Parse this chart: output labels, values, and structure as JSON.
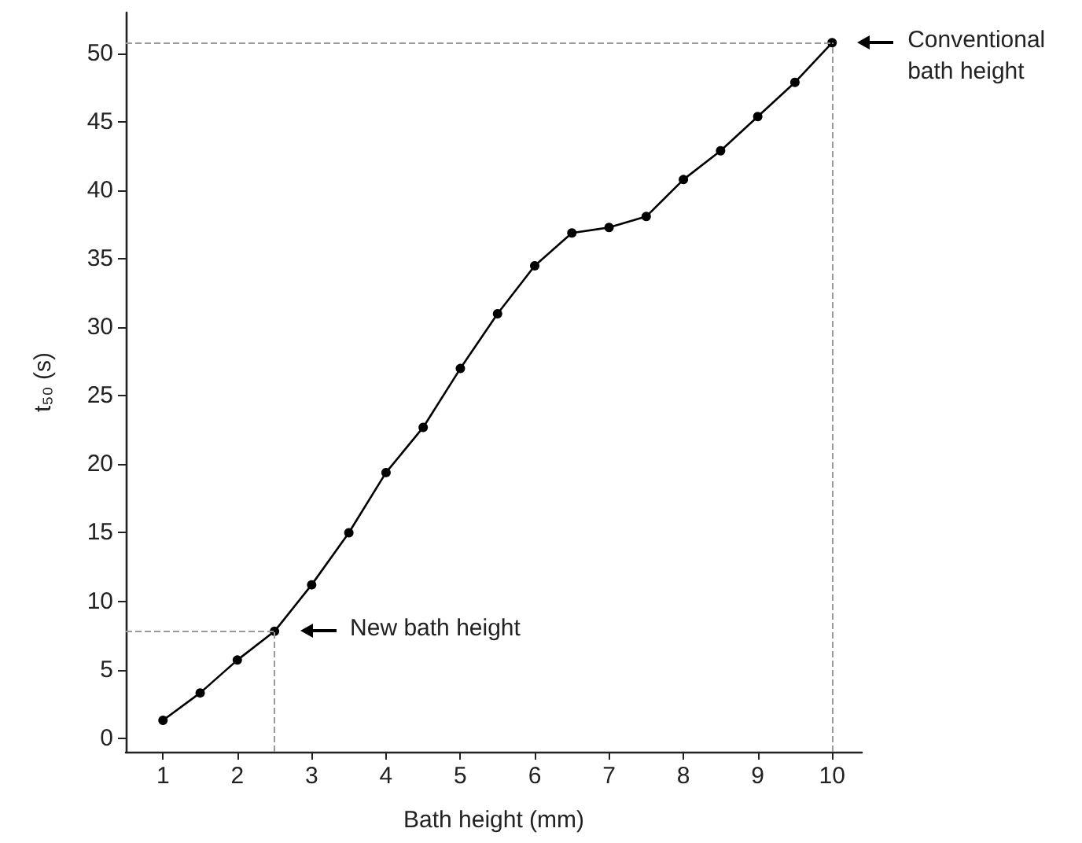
{
  "chart_data": {
    "type": "line",
    "xlabel": "Bath height (mm)",
    "ylabel": "t₅₀ (s)",
    "x": [
      1,
      1.5,
      2,
      2.5,
      3,
      3.5,
      4,
      4.5,
      5,
      5.5,
      6,
      6.5,
      7,
      7.5,
      8,
      8.5,
      9,
      9.5,
      10
    ],
    "series": [
      {
        "color": "#000000",
        "values": [
          1.3,
          3.3,
          5.7,
          7.8,
          11.2,
          15.0,
          19.4,
          22.7,
          27.0,
          31.0,
          34.5,
          36.9,
          37.3,
          38.1,
          40.8,
          42.9,
          45.4,
          47.9,
          50.8
        ]
      }
    ],
    "xlim": [
      0.5,
      10.4
    ],
    "xticks": [
      1,
      2,
      3,
      4,
      5,
      6,
      7,
      8,
      9,
      10
    ],
    "ylim": [
      -1,
      53
    ],
    "yticks": [
      0,
      5,
      10,
      15,
      20,
      25,
      30,
      35,
      40,
      45,
      50
    ],
    "grid": false,
    "marker": "circle",
    "line_style": "solid",
    "ref_lines": [
      {
        "axis": "y",
        "value": 7.8,
        "color": "#999999",
        "line_style": "dashed"
      },
      {
        "axis": "x",
        "value": 2.5,
        "color": "#999999",
        "line_style": "dashed"
      },
      {
        "axis": "y",
        "value": 50.8,
        "color": "#999999",
        "line_style": "dashed"
      },
      {
        "axis": "x",
        "value": 10,
        "color": "#999999",
        "line_style": "dashed"
      }
    ],
    "annotations": [
      "New bath height",
      "Conventional bath height"
    ]
  }
}
